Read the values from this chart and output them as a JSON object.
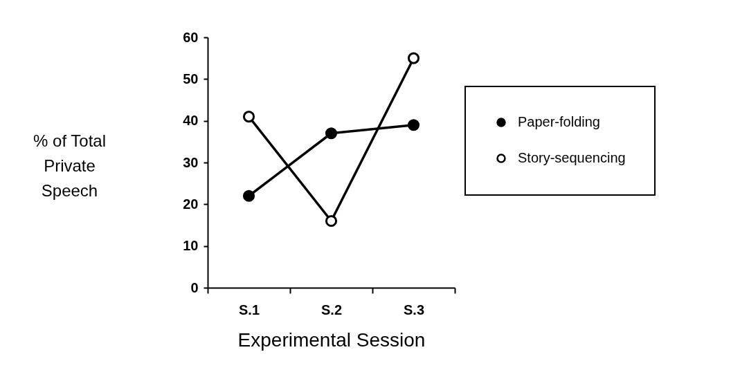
{
  "chart_data": {
    "type": "line",
    "xlabel": "Experimental  Session",
    "ylabel": "% of Total Private Speech",
    "categories": [
      "S.1",
      "S.2",
      "S.3"
    ],
    "series": [
      {
        "name": "Paper-folding",
        "color": "#000000",
        "values": [
          22,
          37,
          39
        ]
      },
      {
        "name": "Story-sequencing",
        "color": "#000000",
        "values": [
          41,
          16,
          55
        ]
      }
    ],
    "ylim": [
      0,
      60
    ],
    "yticks": [
      0,
      10,
      20,
      30,
      40,
      50,
      60
    ],
    "grid": false,
    "legend": "right",
    "marker": "circle",
    "line_style": "solid"
  }
}
